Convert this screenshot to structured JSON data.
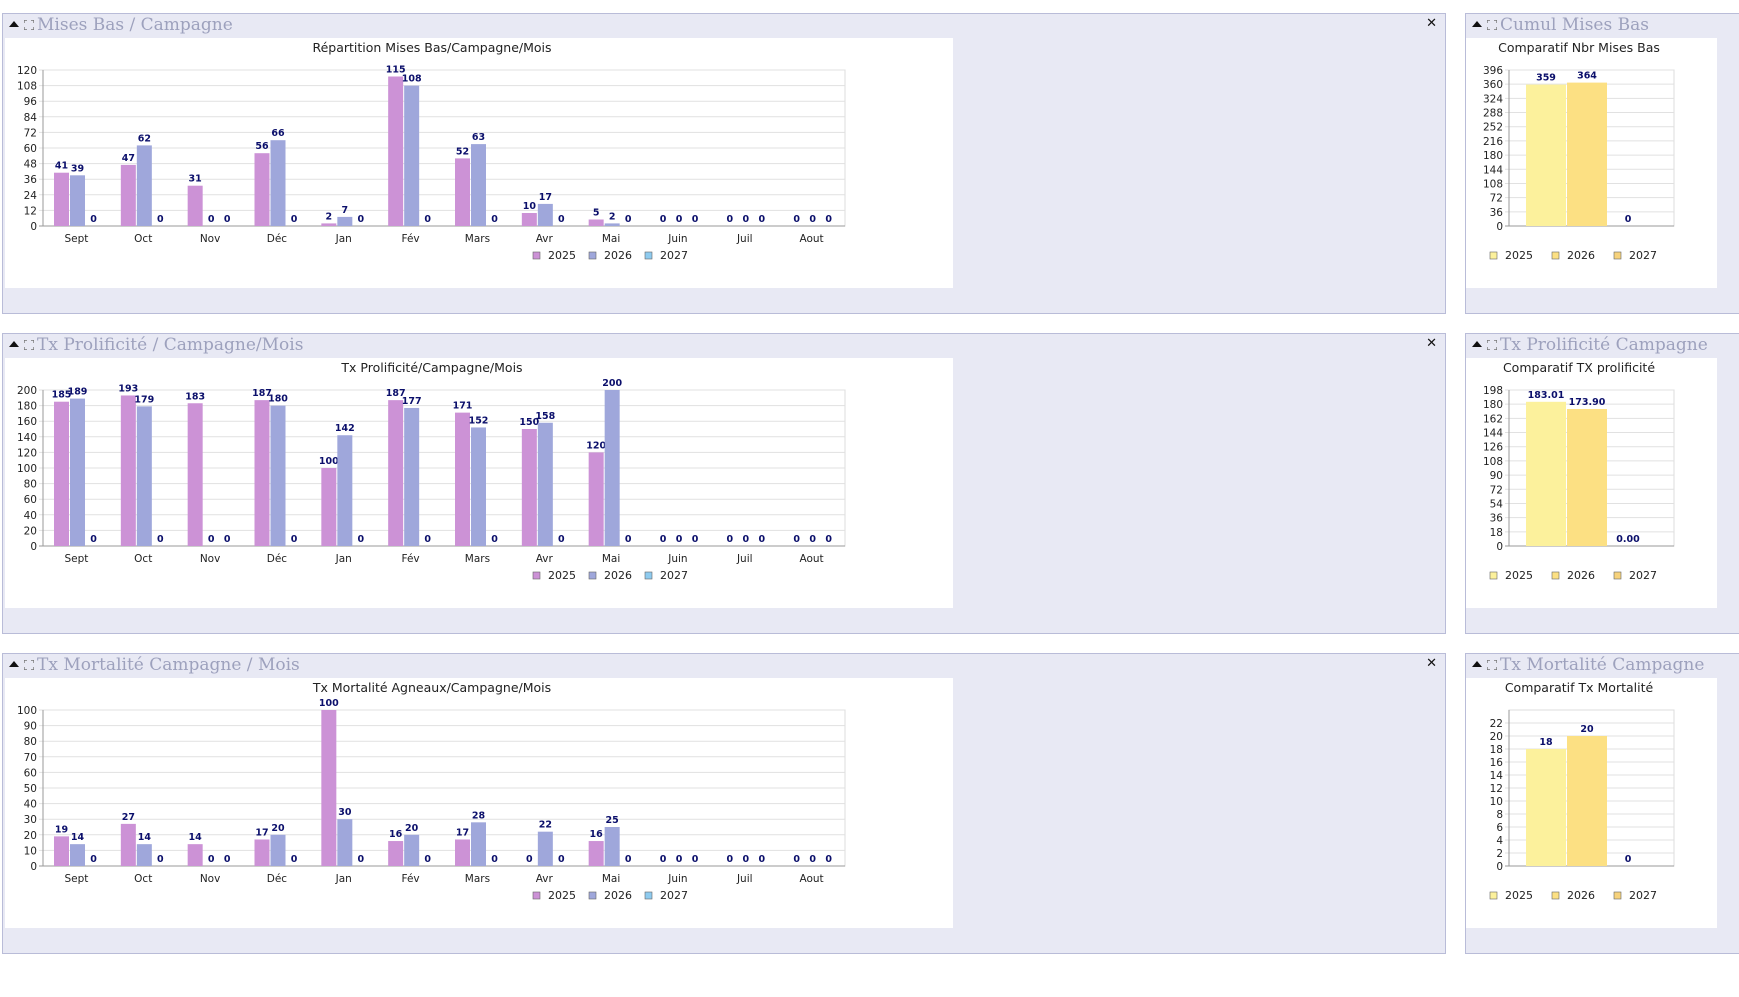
{
  "colors": {
    "c2025": "#cc92d6",
    "c2026": "#9fa7db",
    "c2027": "#8ecbef",
    "y2025": "#fcf19c",
    "y2026": "#fce083",
    "y2027": "#f6d27c",
    "label": "#0b0f6b"
  },
  "icons": {
    "collapse": "collapse-triangle-icon",
    "expand": "expand-frame-icon",
    "close": "close-x-icon"
  },
  "panels": {
    "mises_bas": {
      "title": "Mises Bas / Campagne",
      "close": "✕"
    },
    "cumul_mises_bas": {
      "title": "Cumul Mises Bas"
    },
    "tx_prolificite": {
      "title": "Tx Prolificité / Campagne/Mois",
      "close": "✕"
    },
    "tx_prolificite_campagne": {
      "title": "Tx Prolificité Campagne"
    },
    "tx_mortalite": {
      "title": "Tx Mortalité Campagne / Mois",
      "close": "✕"
    },
    "tx_mortalite_campagne": {
      "title": "Tx Mortalité Campagne"
    }
  },
  "chart_data": [
    {
      "id": "c1",
      "type": "bar",
      "title": "Répartition Mises Bas/Campagne/Mois",
      "categories": [
        "Sept",
        "Oct",
        "Nov",
        "Déc",
        "Jan",
        "Fév",
        "Mars",
        "Avr",
        "Mai",
        "Juin",
        "Juil",
        "Aout"
      ],
      "series": [
        {
          "name": "2025",
          "values": [
            41,
            47,
            31,
            56,
            2,
            115,
            52,
            10,
            5,
            0,
            0,
            0
          ]
        },
        {
          "name": "2026",
          "values": [
            39,
            62,
            0,
            66,
            7,
            108,
            63,
            17,
            2,
            0,
            0,
            0
          ]
        },
        {
          "name": "2027",
          "values": [
            0,
            0,
            0,
            0,
            0,
            0,
            0,
            0,
            0,
            0,
            0,
            0
          ]
        }
      ],
      "yticks": [
        0,
        12,
        24,
        36,
        48,
        60,
        72,
        84,
        96,
        108,
        120
      ],
      "ylim": [
        0,
        120
      ],
      "grid": true,
      "legend": "bottom"
    },
    {
      "id": "c2",
      "type": "bar",
      "title": "Comparatif Nbr Mises Bas",
      "categories": [
        "2025",
        "2026",
        "2027"
      ],
      "values": [
        359,
        364,
        0
      ],
      "labels": [
        "359",
        "364",
        "0"
      ],
      "yticks": [
        0,
        36,
        72,
        108,
        144,
        180,
        216,
        252,
        288,
        324,
        360,
        396
      ],
      "ylim": [
        0,
        396
      ],
      "grid": true,
      "legend": "bottom"
    },
    {
      "id": "c3",
      "type": "bar",
      "title": "Tx Prolificité/Campagne/Mois",
      "categories": [
        "Sept",
        "Oct",
        "Nov",
        "Déc",
        "Jan",
        "Fév",
        "Mars",
        "Avr",
        "Mai",
        "Juin",
        "Juil",
        "Aout"
      ],
      "series": [
        {
          "name": "2025",
          "values": [
            185,
            193,
            183,
            187,
            100,
            187,
            171,
            150,
            120,
            0,
            0,
            0
          ]
        },
        {
          "name": "2026",
          "values": [
            189,
            179,
            0,
            180,
            142,
            177,
            152,
            158,
            200,
            0,
            0,
            0
          ]
        },
        {
          "name": "2027",
          "values": [
            0,
            0,
            0,
            0,
            0,
            0,
            0,
            0,
            0,
            0,
            0,
            0
          ]
        }
      ],
      "yticks": [
        0,
        20,
        40,
        60,
        80,
        100,
        120,
        140,
        160,
        180,
        200
      ],
      "ylim": [
        0,
        200
      ],
      "grid": true,
      "legend": "bottom"
    },
    {
      "id": "c4",
      "type": "bar",
      "title": "Comparatif TX prolificité",
      "categories": [
        "2025",
        "2026",
        "2027"
      ],
      "values": [
        183.01,
        173.9,
        0
      ],
      "labels": [
        "183.01",
        "173.90",
        "0.00"
      ],
      "yticks": [
        0,
        18,
        36,
        54,
        72,
        90,
        108,
        126,
        144,
        162,
        180,
        198
      ],
      "ylim": [
        0,
        198
      ],
      "grid": true,
      "legend": "bottom"
    },
    {
      "id": "c5",
      "type": "bar",
      "title": "Tx Mortalité Agneaux/Campagne/Mois",
      "categories": [
        "Sept",
        "Oct",
        "Nov",
        "Déc",
        "Jan",
        "Fév",
        "Mars",
        "Avr",
        "Mai",
        "Juin",
        "Juil",
        "Aout"
      ],
      "series": [
        {
          "name": "2025",
          "values": [
            19,
            27,
            14,
            17,
            100,
            16,
            17,
            0,
            16,
            0,
            0,
            0
          ]
        },
        {
          "name": "2026",
          "values": [
            14,
            14,
            0,
            20,
            30,
            20,
            28,
            22,
            25,
            0,
            0,
            0
          ]
        },
        {
          "name": "2027",
          "values": [
            0,
            0,
            0,
            0,
            0,
            0,
            0,
            0,
            0,
            0,
            0,
            0
          ]
        }
      ],
      "yticks": [
        0,
        10,
        20,
        30,
        40,
        50,
        60,
        70,
        80,
        90,
        100
      ],
      "ylim": [
        0,
        100
      ],
      "grid": true,
      "legend": "bottom"
    },
    {
      "id": "c6",
      "type": "bar",
      "title": "Comparatif Tx Mortalité",
      "categories": [
        "2025",
        "2026",
        "2027"
      ],
      "values": [
        18,
        20,
        0
      ],
      "labels": [
        "18",
        "20",
        "0"
      ],
      "yticks": [
        0,
        2,
        4,
        6,
        8,
        10,
        12,
        14,
        16,
        18,
        20,
        22
      ],
      "ylim": [
        0,
        24
      ],
      "grid": true,
      "legend": "bottom"
    }
  ]
}
